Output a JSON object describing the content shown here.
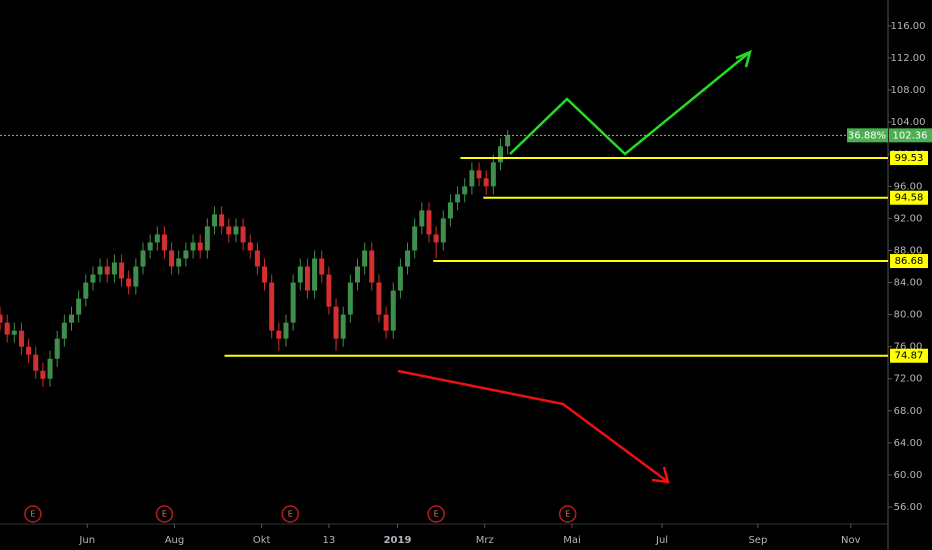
{
  "chart_data": {
    "type": "candlestick",
    "x": [
      0,
      5,
      10,
      15,
      20,
      25,
      30,
      35,
      40,
      45,
      50,
      55,
      60,
      65,
      70,
      75,
      80,
      85,
      90,
      95,
      100,
      105,
      110,
      115,
      120,
      125,
      130,
      135,
      140,
      145,
      150,
      155,
      160,
      165,
      170,
      175,
      180,
      185,
      190,
      195,
      200,
      205,
      210,
      215,
      220,
      225,
      230,
      235,
      240,
      245,
      250,
      255,
      260,
      265,
      270,
      275,
      280,
      285,
      290,
      295,
      300,
      305,
      310,
      315,
      320,
      325,
      330,
      335,
      340,
      345,
      350,
      355
    ],
    "open": [
      80,
      79,
      77.5,
      78,
      76,
      75,
      73,
      72,
      74.5,
      77,
      79,
      80,
      82,
      84,
      85,
      86,
      85,
      86.5,
      84.5,
      83.5,
      86,
      88,
      89,
      90,
      88,
      86,
      87,
      88,
      89,
      88,
      91,
      92.5,
      91,
      90,
      91,
      89,
      88,
      86,
      84,
      78,
      77,
      79,
      84,
      86,
      83,
      87,
      85,
      81,
      77,
      80,
      84,
      86,
      88,
      84,
      80,
      78,
      83,
      86,
      88,
      91,
      93,
      90,
      89,
      92,
      94,
      95,
      96,
      98,
      97,
      96,
      99,
      101
    ],
    "high": [
      81,
      80,
      79,
      79,
      77,
      76,
      74,
      75.5,
      78,
      80,
      81,
      83,
      85,
      86,
      87,
      87,
      87.5,
      87.5,
      85.5,
      87,
      89,
      90,
      91,
      91,
      89,
      88,
      89,
      90,
      90,
      92,
      93.5,
      93.5,
      92,
      92,
      92,
      90,
      89,
      87,
      85,
      79,
      80,
      85,
      87,
      87,
      88,
      88,
      86,
      82,
      81,
      85,
      87,
      89,
      89,
      85,
      81,
      84,
      87,
      89,
      92,
      94,
      94,
      91,
      93,
      95,
      96,
      97,
      99,
      99,
      98,
      100,
      102,
      103
    ],
    "low": [
      78,
      76.5,
      76.5,
      75,
      74,
      72,
      71,
      71,
      73.5,
      76,
      78,
      79,
      81,
      83,
      84,
      84,
      84,
      83.5,
      82.5,
      82.5,
      85,
      87,
      88,
      87,
      85,
      85,
      86,
      87,
      87,
      87,
      90,
      90,
      89,
      89,
      88,
      87,
      85,
      83,
      77,
      75.5,
      76,
      78,
      83,
      82,
      82,
      84,
      80,
      75.5,
      76,
      79,
      83,
      85,
      83,
      79,
      77,
      77,
      82,
      85,
      87,
      90,
      89,
      87,
      88,
      91,
      93,
      94,
      95,
      96,
      95,
      95,
      98,
      100
    ],
    "close": [
      79,
      77.5,
      78,
      76,
      75,
      73,
      72,
      74.5,
      77,
      79,
      80,
      82,
      84,
      85,
      86,
      85,
      86.5,
      84.5,
      83.5,
      86,
      88,
      89,
      90,
      88,
      86,
      87,
      88,
      89,
      88,
      91,
      92.5,
      91,
      90,
      91,
      89,
      88,
      86,
      84,
      78,
      77,
      79,
      84,
      86,
      83,
      87,
      85,
      81,
      77,
      80,
      84,
      86,
      88,
      84,
      80,
      78,
      83,
      86,
      88,
      91,
      93,
      90,
      89,
      92,
      94,
      95,
      96,
      98,
      97,
      96,
      99,
      101,
      102.36
    ],
    "up_color": "#3f8f4c",
    "down_color": "#d32f2f",
    "xlim": [
      0,
      621
    ],
    "ylim": [
      50.64,
      119.24
    ],
    "yticks": [
      {
        "value": 56,
        "label": "56.00"
      },
      {
        "value": 60,
        "label": "60.00"
      },
      {
        "value": 64,
        "label": "64.00"
      },
      {
        "value": 68,
        "label": "68.00"
      },
      {
        "value": 72,
        "label": "72.00"
      },
      {
        "value": 76,
        "label": "76.00"
      },
      {
        "value": 80,
        "label": "80.00"
      },
      {
        "value": 84,
        "label": "84.00"
      },
      {
        "value": 88,
        "label": "88.00"
      },
      {
        "value": 92,
        "label": "92.00"
      },
      {
        "value": 96,
        "label": "96.00"
      },
      {
        "value": 100,
        "label": "100.00"
      },
      {
        "value": 104,
        "label": "104.00"
      },
      {
        "value": 108,
        "label": "108.00"
      },
      {
        "value": 112,
        "label": "112.00"
      },
      {
        "value": 116,
        "label": "116.00"
      }
    ],
    "xticks": [
      {
        "value": 61,
        "label": "Jun"
      },
      {
        "value": 122,
        "label": "Aug"
      },
      {
        "value": 183,
        "label": "Okt"
      },
      {
        "value": 230,
        "label": "13"
      },
      {
        "value": 278,
        "label": "2019"
      },
      {
        "value": 339,
        "label": "Mrz"
      },
      {
        "value": 400,
        "label": "Mai"
      },
      {
        "value": 463,
        "label": "Jul"
      },
      {
        "value": 530,
        "label": "Sep"
      },
      {
        "value": 595,
        "label": "Nov"
      }
    ],
    "levels": [
      {
        "value": 99.53,
        "from": 322
      },
      {
        "value": 94.58,
        "from": 338
      },
      {
        "value": 86.68,
        "from": 303
      },
      {
        "value": 74.87,
        "from": 157
      }
    ],
    "level_color": "#ffff00",
    "last_price": 102.36,
    "last_change": "36.88%",
    "earnings": {
      "label": "E",
      "x": [
        23,
        115,
        203,
        305,
        397
      ]
    }
  }
}
